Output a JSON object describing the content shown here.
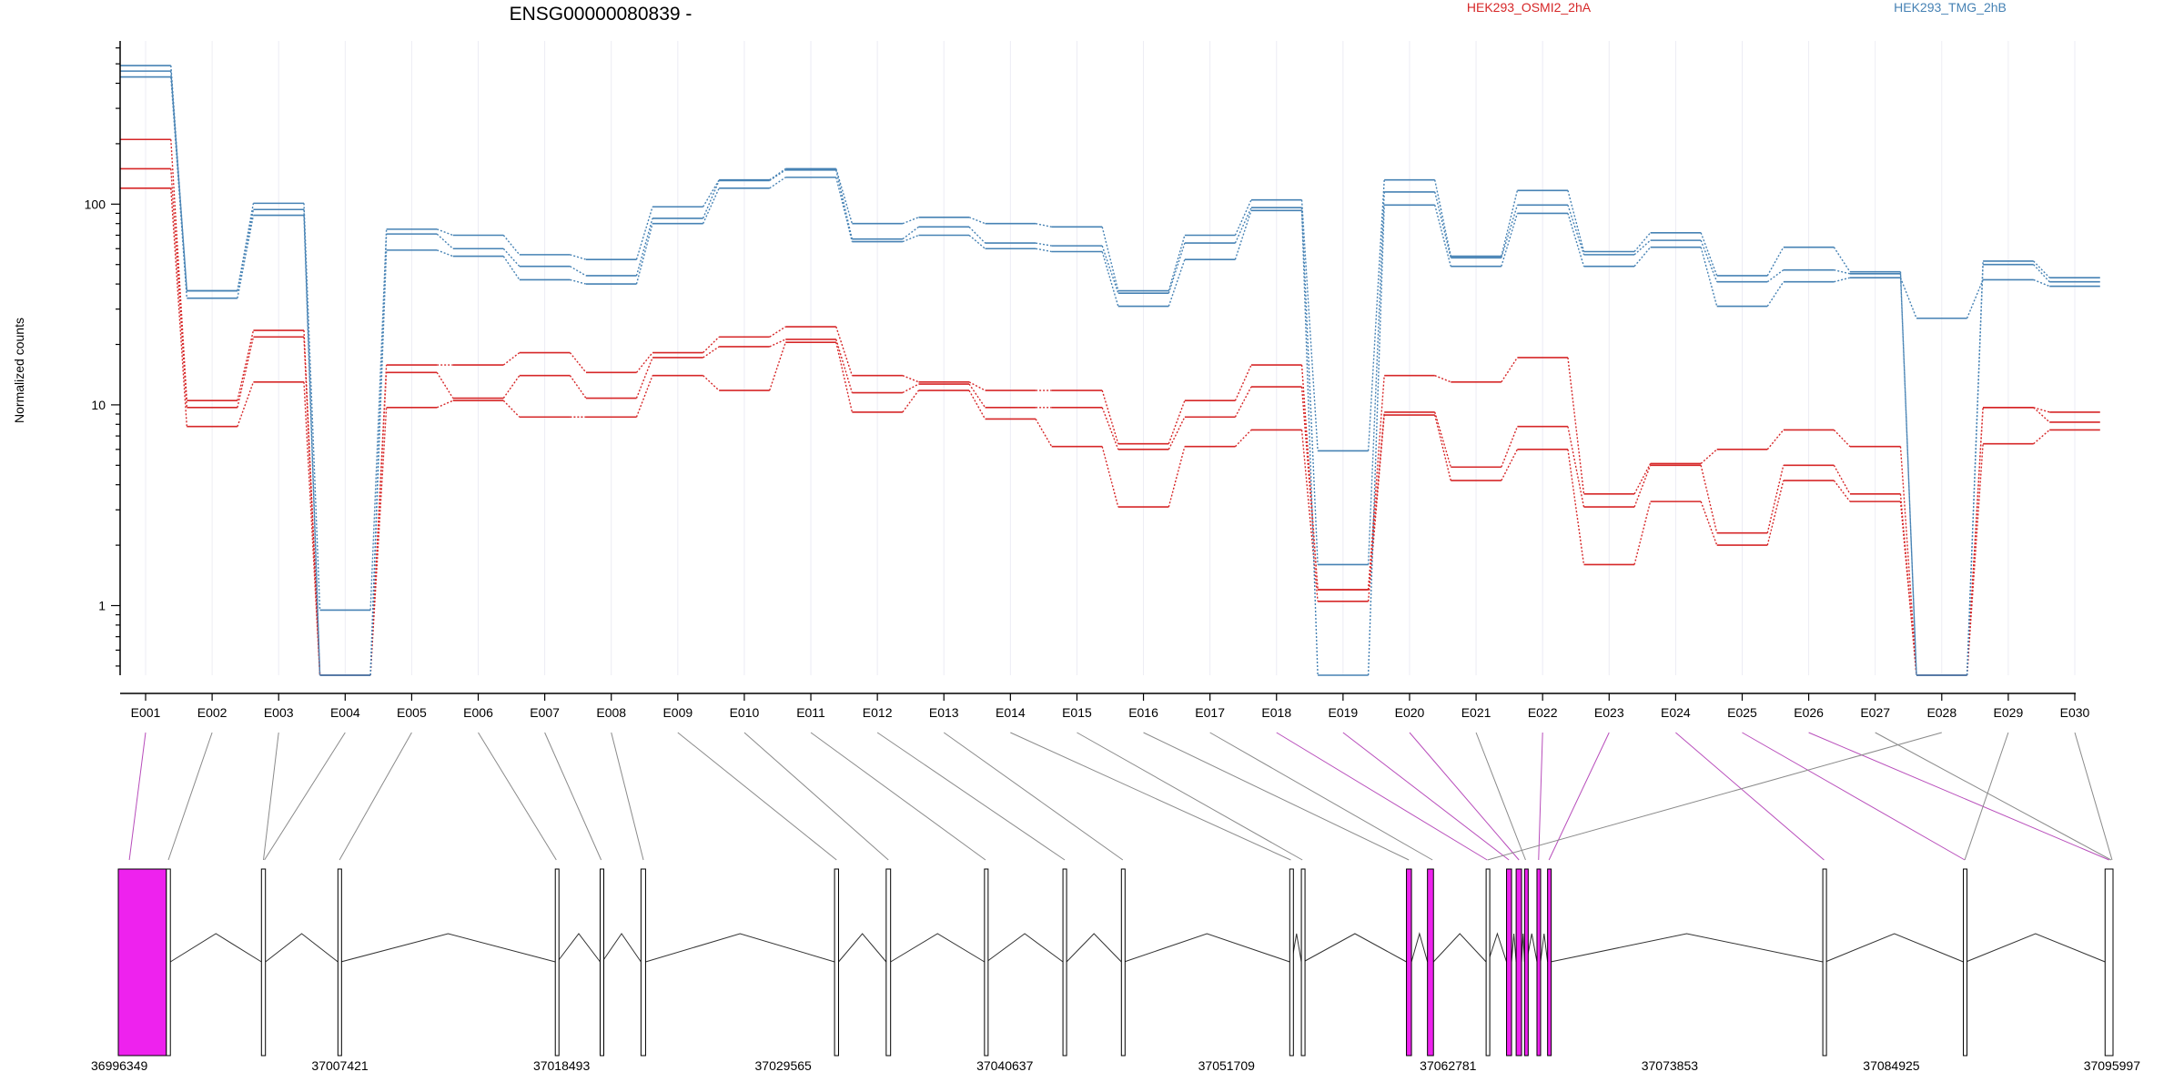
{
  "chart_data": {
    "type": "line",
    "title": "ENSG00000080839 -",
    "ylabel": "Normalized counts",
    "xlabel": "",
    "y_scale": "log",
    "ylim": [
      0.45,
      650
    ],
    "y_ticks": [
      1,
      10,
      100
    ],
    "y_tick_labels": [
      "1",
      "10",
      "100"
    ],
    "grid": "vertical, light",
    "legend_placement": "top",
    "categories": [
      "E001",
      "E002",
      "E003",
      "E004",
      "E005",
      "E006",
      "E007",
      "E008",
      "E009",
      "E010",
      "E011",
      "E012",
      "E013",
      "E014",
      "E015",
      "E016",
      "E017",
      "E018",
      "E019",
      "E020",
      "E021",
      "E022",
      "E023",
      "E024",
      "E025",
      "E026",
      "E027",
      "E028",
      "E029",
      "E030"
    ],
    "groups": [
      {
        "name": "HEK293_OSMI2_2hA",
        "color": "#d62728",
        "series": [
          {
            "values": [
              210,
              10.5,
              23.5,
              0.45,
              15.8,
              15.8,
              18.2,
              14.5,
              18.2,
              21.8,
              24.5,
              14.0,
              13.0,
              11.8,
              11.8,
              6.4,
              10.5,
              15.8,
              1.2,
              14.0,
              13.0,
              17.2,
              3.6,
              5.1,
              6.0,
              7.5,
              6.2,
              0.45,
              9.7,
              9.2
            ]
          },
          {
            "values": [
              150,
              9.7,
              21.8,
              0.45,
              14.5,
              10.8,
              14.0,
              10.8,
              17.2,
              19.5,
              21.2,
              11.5,
              12.7,
              9.7,
              9.7,
              6.0,
              8.7,
              12.3,
              1.2,
              9.2,
              4.9,
              7.8,
              3.1,
              5.0,
              2.3,
              5.0,
              3.6,
              0.45,
              9.7,
              8.2
            ]
          },
          {
            "values": [
              120,
              7.8,
              13.0,
              0.45,
              9.7,
              10.5,
              8.7,
              8.7,
              14.0,
              11.8,
              20.5,
              9.2,
              11.8,
              8.5,
              6.2,
              3.1,
              6.2,
              7.5,
              1.05,
              8.9,
              4.2,
              6.0,
              1.6,
              3.3,
              2.0,
              4.2,
              3.3,
              0.45,
              6.4,
              7.5
            ]
          }
        ]
      },
      {
        "name": "HEK293_TMG_2hB",
        "color": "#4682b4",
        "series": [
          {
            "values": [
              490,
              37,
              101,
              0.95,
              75,
              70,
              56,
              53,
              97,
              132,
              150,
              80,
              86,
              80,
              77,
              37,
              70,
              105,
              5.9,
              132,
              55,
              117,
              58,
              72,
              44,
              61,
              46,
              0.45,
              52,
              43
            ]
          },
          {
            "values": [
              460,
              37,
              94,
              0.45,
              71,
              60,
              49,
              44,
              85,
              131,
              148,
              67,
              77,
              64,
              62,
              36,
              64,
              96,
              1.6,
              115,
              54,
              99,
              56,
              66,
              41,
              47,
              45,
              0.45,
              50,
              41
            ]
          },
          {
            "values": [
              430,
              34,
              88,
              0.45,
              59,
              55,
              42,
              40,
              80,
              120,
              136,
              65,
              70,
              60,
              58,
              31,
              53,
              93,
              0.45,
              99,
              49,
              90,
              49,
              61,
              31,
              41,
              43,
              27,
              42,
              39
            ]
          }
        ]
      }
    ],
    "legend": [
      {
        "label": "HEK293_OSMI2_2hA",
        "color": "#d62728"
      },
      {
        "label": "HEK293_TMG_2hB",
        "color": "#4682b4"
      }
    ],
    "gene_track": {
      "coordinate_labels": [
        "36996349",
        "37007421",
        "37018493",
        "37029565",
        "37040637",
        "37051709",
        "37062781",
        "37073853",
        "37084925",
        "37095997"
      ],
      "highlight_color": "#ee22ee",
      "exon_highlighted": [
        true,
        false,
        false,
        false,
        false,
        false,
        false,
        false,
        false,
        false,
        false,
        false,
        false,
        false,
        false,
        false,
        false,
        true,
        true,
        true,
        false,
        true,
        true,
        true,
        true,
        true,
        false,
        false,
        false,
        false
      ]
    }
  }
}
